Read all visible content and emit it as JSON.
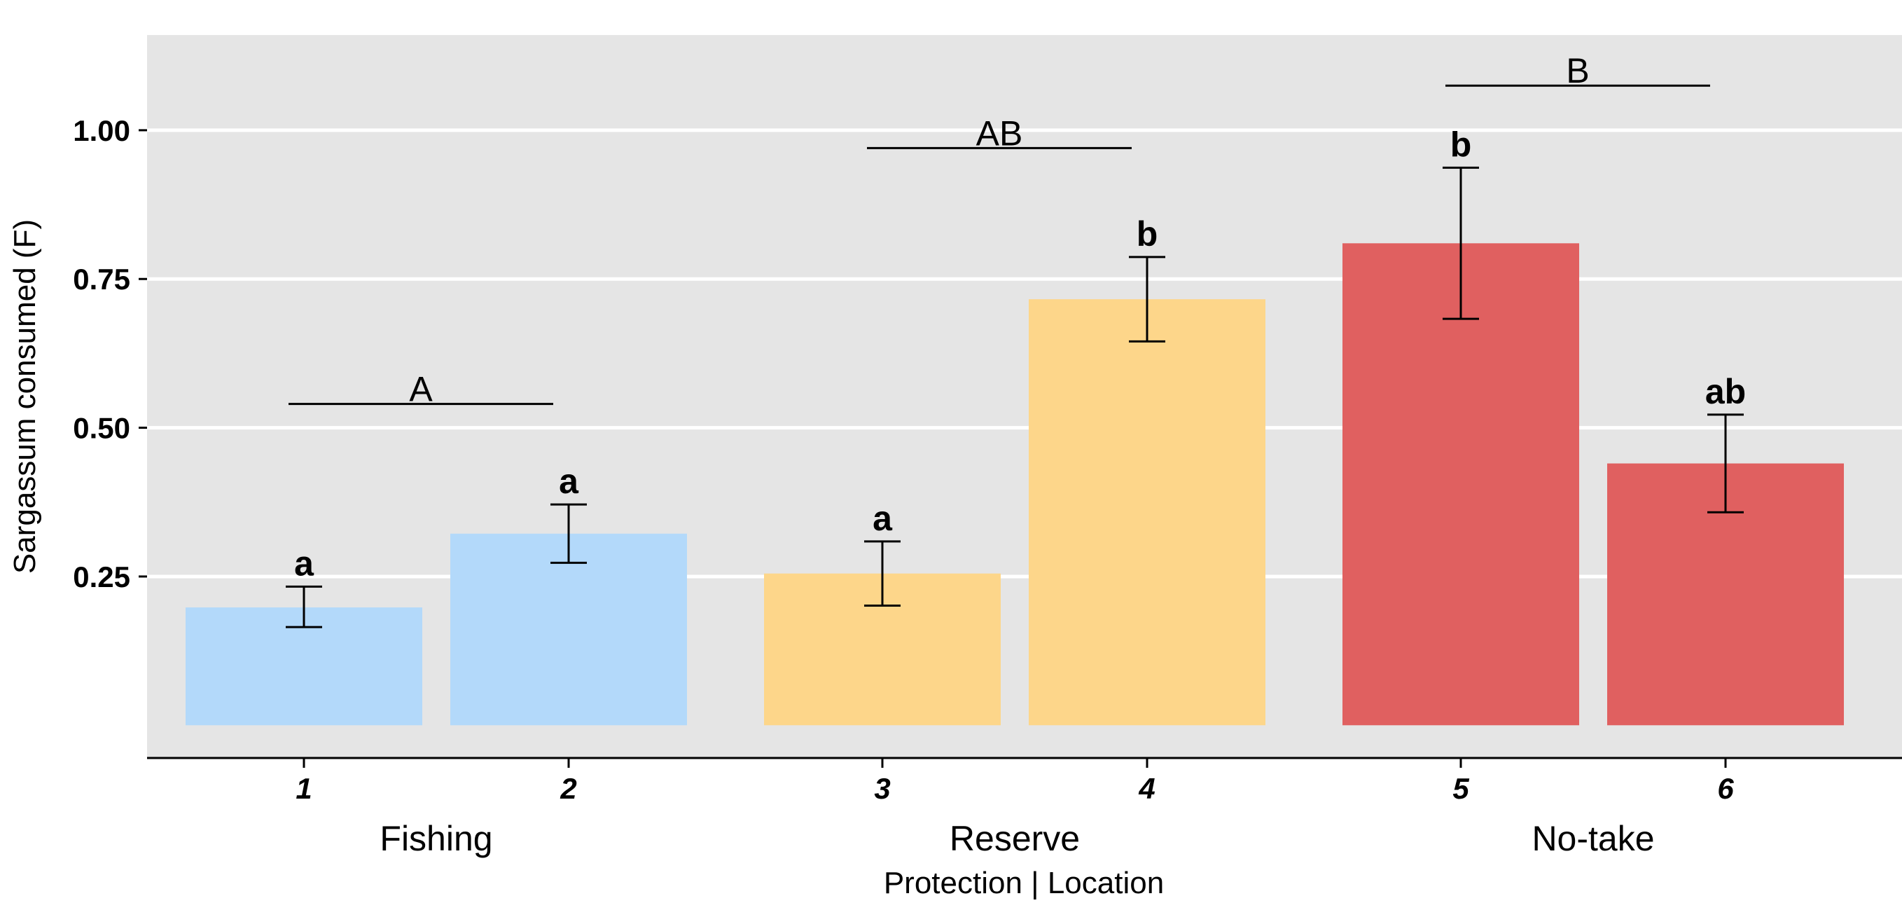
{
  "chart_data": {
    "type": "bar",
    "xlabel": "Protection | Location",
    "ylabel": "Sargassum consumed (F)",
    "ylim": [
      -0.055,
      1.16
    ],
    "yticks": [
      0.25,
      0.5,
      0.75,
      1.0
    ],
    "ytick_labels": [
      "0.25",
      "0.50",
      "0.75",
      "1.00"
    ],
    "grid": true,
    "legend": "none",
    "groups": [
      {
        "name": "Fishing",
        "color": "#B3D9FA",
        "bracket_letter": "A",
        "bracket_y": 0.54,
        "bars": [
          {
            "category": "1",
            "value": 0.198,
            "err_low": 0.165,
            "err_high": 0.233,
            "letter": "a"
          },
          {
            "category": "2",
            "value": 0.322,
            "err_low": 0.273,
            "err_high": 0.371,
            "letter": "a"
          }
        ]
      },
      {
        "name": "Reserve",
        "color": "#FDD68A",
        "bracket_letter": "AB",
        "bracket_y": 0.97,
        "bars": [
          {
            "category": "3",
            "value": 0.255,
            "err_low": 0.201,
            "err_high": 0.309,
            "letter": "a"
          },
          {
            "category": "4",
            "value": 0.716,
            "err_low": 0.645,
            "err_high": 0.787,
            "letter": "b"
          }
        ]
      },
      {
        "name": "No-take",
        "color": "#E06060",
        "bracket_letter": "B",
        "bracket_y": 1.075,
        "bars": [
          {
            "category": "5",
            "value": 0.81,
            "err_low": 0.683,
            "err_high": 0.937,
            "letter": "b"
          },
          {
            "category": "6",
            "value": 0.44,
            "err_low": 0.358,
            "err_high": 0.522,
            "letter": "ab"
          }
        ]
      }
    ]
  }
}
